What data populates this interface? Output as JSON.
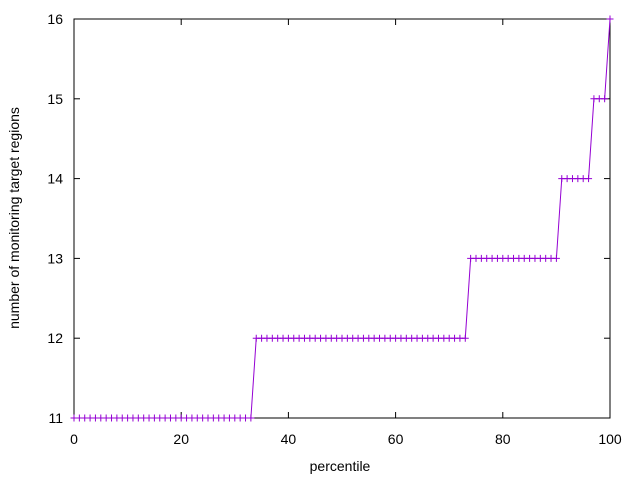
{
  "chart_data": {
    "type": "line",
    "xlabel": "percentile",
    "ylabel": "number of monitoring target regions",
    "x": [
      0,
      1,
      2,
      3,
      4,
      5,
      6,
      7,
      8,
      9,
      10,
      11,
      12,
      13,
      14,
      15,
      16,
      17,
      18,
      19,
      20,
      21,
      22,
      23,
      24,
      25,
      26,
      27,
      28,
      29,
      30,
      31,
      32,
      33,
      34,
      35,
      36,
      37,
      38,
      39,
      40,
      41,
      42,
      43,
      44,
      45,
      46,
      47,
      48,
      49,
      50,
      51,
      52,
      53,
      54,
      55,
      56,
      57,
      58,
      59,
      60,
      61,
      62,
      63,
      64,
      65,
      66,
      67,
      68,
      69,
      70,
      71,
      72,
      73,
      74,
      75,
      76,
      77,
      78,
      79,
      80,
      81,
      82,
      83,
      84,
      85,
      86,
      87,
      88,
      89,
      90,
      91,
      92,
      93,
      94,
      95,
      96,
      97,
      98,
      99,
      100
    ],
    "series": [
      {
        "color": "#9400d3",
        "values": [
          11,
          11,
          11,
          11,
          11,
          11,
          11,
          11,
          11,
          11,
          11,
          11,
          11,
          11,
          11,
          11,
          11,
          11,
          11,
          11,
          11,
          11,
          11,
          11,
          11,
          11,
          11,
          11,
          11,
          11,
          11,
          11,
          11,
          11,
          12,
          12,
          12,
          12,
          12,
          12,
          12,
          12,
          12,
          12,
          12,
          12,
          12,
          12,
          12,
          12,
          12,
          12,
          12,
          12,
          12,
          12,
          12,
          12,
          12,
          12,
          12,
          12,
          12,
          12,
          12,
          12,
          12,
          12,
          12,
          12,
          12,
          12,
          12,
          12,
          13,
          13,
          13,
          13,
          13,
          13,
          13,
          13,
          13,
          13,
          13,
          13,
          13,
          13,
          13,
          13,
          13,
          14,
          14,
          14,
          14,
          14,
          14,
          15,
          15,
          15,
          16
        ]
      }
    ],
    "xlim": [
      0,
      100
    ],
    "xticks": [
      0,
      20,
      40,
      60,
      80,
      100
    ],
    "ylim": [
      11,
      16
    ],
    "yticks": [
      11,
      12,
      13,
      14,
      15,
      16
    ]
  }
}
